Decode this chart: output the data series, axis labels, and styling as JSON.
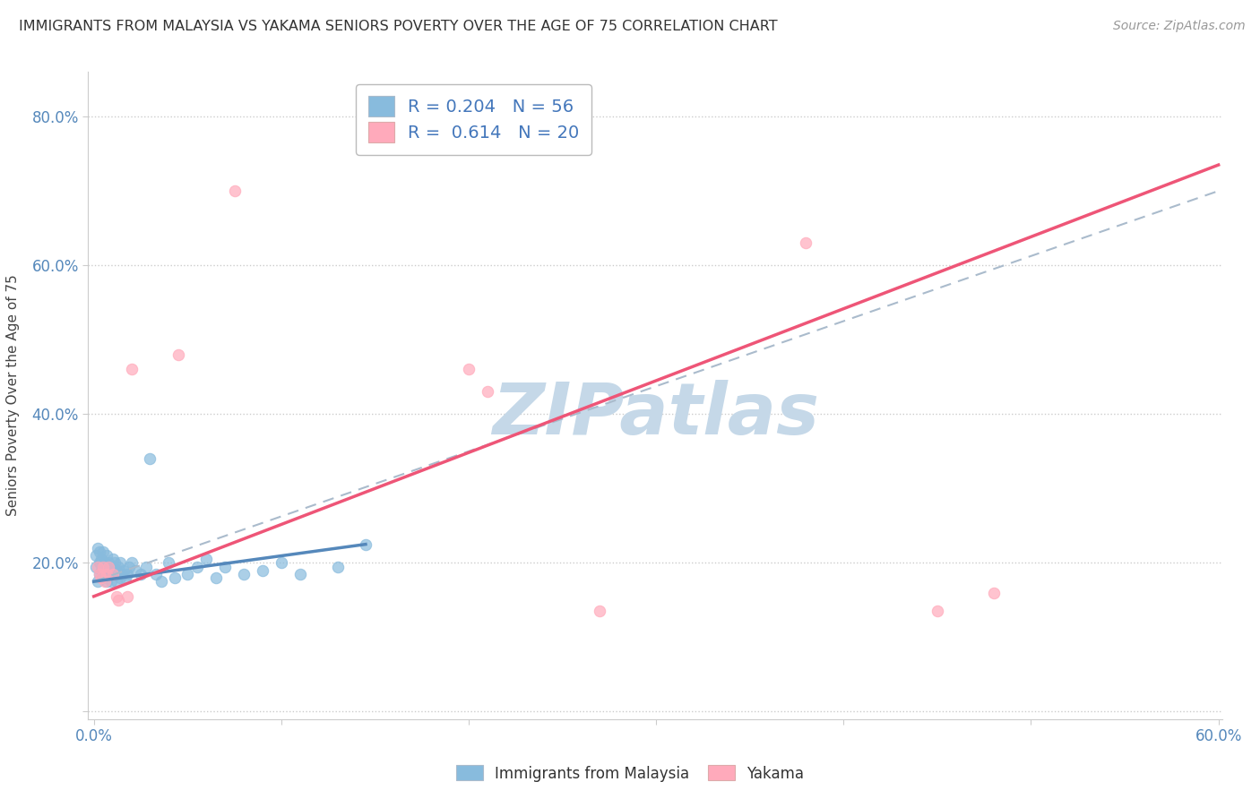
{
  "title": "IMMIGRANTS FROM MALAYSIA VS YAKAMA SENIORS POVERTY OVER THE AGE OF 75 CORRELATION CHART",
  "source": "Source: ZipAtlas.com",
  "ylabel": "Seniors Poverty Over the Age of 75",
  "xlim": [
    -0.003,
    0.602
  ],
  "ylim": [
    -0.01,
    0.86
  ],
  "blue_color": "#88BBDD",
  "pink_color": "#FFAABB",
  "blue_line_color": "#5588BB",
  "pink_line_color": "#EE5577",
  "dashed_line_color": "#AABBCC",
  "watermark": "ZIPatlas",
  "watermark_color": "#C5D8E8",
  "legend1_label": "R = 0.204   N = 56",
  "legend2_label": "R =  0.614   N = 20",
  "legend_x_label": "Immigrants from Malaysia",
  "legend_y_label": "Yakama",
  "blue_R": "0.204",
  "blue_N": "56",
  "pink_R": "0.614",
  "pink_N": "20",
  "blue_line_x0": 0.0,
  "blue_line_y0": 0.175,
  "blue_line_x1": 0.145,
  "blue_line_y1": 0.225,
  "pink_line_x0": 0.0,
  "pink_line_y0": 0.155,
  "pink_line_x1": 0.6,
  "pink_line_y1": 0.735,
  "dashed_line_x0": 0.0,
  "dashed_line_y0": 0.175,
  "dashed_line_x1": 0.6,
  "dashed_line_y1": 0.7,
  "ytick_vals": [
    0.0,
    0.2,
    0.4,
    0.6,
    0.8
  ],
  "ytick_labels": [
    "",
    "20.0%",
    "40.0%",
    "60.0%",
    "80.0%"
  ],
  "xtick_vals": [
    0.0,
    0.1,
    0.2,
    0.3,
    0.4,
    0.5,
    0.6
  ],
  "xtick_labels": [
    "0.0%",
    "",
    "",
    "",
    "",
    "",
    "60.0%"
  ],
  "blue_x": [
    0.001,
    0.001,
    0.002,
    0.002,
    0.003,
    0.003,
    0.003,
    0.004,
    0.004,
    0.005,
    0.005,
    0.005,
    0.006,
    0.006,
    0.007,
    0.007,
    0.007,
    0.008,
    0.008,
    0.009,
    0.009,
    0.01,
    0.01,
    0.011,
    0.011,
    0.012,
    0.012,
    0.013,
    0.013,
    0.014,
    0.014,
    0.015,
    0.016,
    0.017,
    0.018,
    0.019,
    0.02,
    0.022,
    0.025,
    0.028,
    0.03,
    0.033,
    0.036,
    0.04,
    0.043,
    0.05,
    0.055,
    0.06,
    0.065,
    0.07,
    0.08,
    0.09,
    0.1,
    0.11,
    0.13,
    0.145
  ],
  "blue_y": [
    0.195,
    0.21,
    0.175,
    0.22,
    0.185,
    0.2,
    0.215,
    0.19,
    0.205,
    0.18,
    0.195,
    0.215,
    0.2,
    0.185,
    0.175,
    0.195,
    0.21,
    0.185,
    0.2,
    0.175,
    0.19,
    0.195,
    0.205,
    0.185,
    0.2,
    0.19,
    0.175,
    0.195,
    0.185,
    0.2,
    0.18,
    0.185,
    0.19,
    0.18,
    0.185,
    0.195,
    0.2,
    0.19,
    0.185,
    0.195,
    0.34,
    0.185,
    0.175,
    0.2,
    0.18,
    0.185,
    0.195,
    0.205,
    0.18,
    0.195,
    0.185,
    0.19,
    0.2,
    0.185,
    0.195,
    0.225
  ],
  "pink_x": [
    0.002,
    0.003,
    0.004,
    0.005,
    0.006,
    0.007,
    0.008,
    0.01,
    0.012,
    0.013,
    0.018,
    0.02,
    0.045,
    0.075,
    0.2,
    0.21,
    0.27,
    0.38,
    0.45,
    0.48
  ],
  "pink_y": [
    0.195,
    0.185,
    0.18,
    0.195,
    0.175,
    0.185,
    0.195,
    0.185,
    0.155,
    0.15,
    0.155,
    0.46,
    0.48,
    0.7,
    0.46,
    0.43,
    0.135,
    0.63,
    0.135,
    0.16
  ]
}
